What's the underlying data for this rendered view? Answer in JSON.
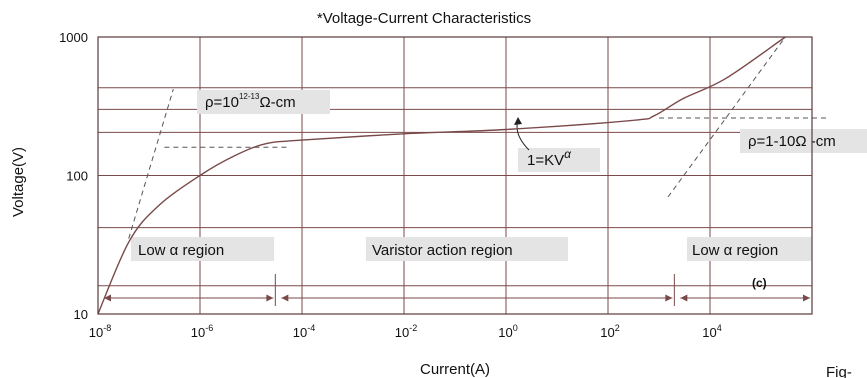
{
  "chart_data": {
    "type": "line",
    "title": "*Voltage-Current Characteristics",
    "xlabel": "Current(A)",
    "ylabel": "Voltage(V)",
    "x_scale": "log",
    "y_scale": "log",
    "xlim": [
      1e-08,
      1000000.0
    ],
    "ylim": [
      10,
      1000
    ],
    "grid": true,
    "x_ticks": [
      {
        "value": 1e-08,
        "base": "10",
        "exp": "-8"
      },
      {
        "value": 1e-06,
        "base": "10",
        "exp": "-6"
      },
      {
        "value": 0.0001,
        "base": "10",
        "exp": "-4"
      },
      {
        "value": 0.01,
        "base": "10",
        "exp": "-2"
      },
      {
        "value": 1,
        "base": "10",
        "exp": "0"
      },
      {
        "value": 100,
        "base": "10",
        "exp": "2"
      },
      {
        "value": 10000,
        "base": "10",
        "exp": "4"
      }
    ],
    "y_ticks": [
      {
        "value": 10,
        "label": "10"
      },
      {
        "value": 100,
        "label": "100"
      },
      {
        "value": 1000,
        "label": "1000"
      }
    ],
    "x_grid": [
      1e-08,
      1e-06,
      0.0001,
      0.01,
      1,
      100,
      10000,
      1000000.0
    ],
    "y_grid": [
      10,
      16,
      42,
      100,
      205,
      300,
      430,
      1000
    ],
    "series": [
      {
        "name": "",
        "points": [
          [
            1e-08,
            10
          ],
          [
            4e-08,
            33
          ],
          [
            1.5e-07,
            60
          ],
          [
            1e-06,
            100
          ],
          [
            5e-06,
            140
          ],
          [
            2e-05,
            170
          ],
          [
            0.0001,
            180
          ],
          [
            0.01,
            200
          ],
          [
            1,
            215
          ],
          [
            300,
            250
          ],
          [
            800,
            270
          ],
          [
            3000,
            360
          ],
          [
            20000,
            500
          ],
          [
            300000,
            1000
          ]
        ]
      }
    ],
    "reference_lines": [
      {
        "style": "dashed",
        "points": [
          [
            4e-08,
            35
          ],
          [
            3e-07,
            420
          ]
        ]
      },
      {
        "style": "dashed",
        "points": [
          [
            2e-07,
            160
          ],
          [
            5e-05,
            160
          ]
        ]
      },
      {
        "style": "dashed",
        "points": [
          [
            1000,
            260
          ],
          [
            2000000,
            260
          ]
        ]
      },
      {
        "style": "dashed",
        "points": [
          [
            1500,
            70
          ],
          [
            300000,
            1000
          ]
        ]
      }
    ],
    "annotations": {
      "rho_high": {
        "prefix": "ρ=10",
        "exp": "12-13",
        "suffix": "Ω-cm"
      },
      "power_law": {
        "prefix": "1=KV",
        "exp": "α"
      },
      "rho_low": {
        "text": "ρ=1-10Ω -cm"
      },
      "region_low_left": "Low α region",
      "region_varistor": "Varistor action region",
      "region_low_right": "Low α region",
      "curve_label": "(c)",
      "figure_label": "Fig-"
    },
    "region_spans": [
      {
        "from": 1e-08,
        "to": 3e-05
      },
      {
        "from": 3e-05,
        "to": 2000
      },
      {
        "from": 2000,
        "to": 3000000
      }
    ]
  }
}
